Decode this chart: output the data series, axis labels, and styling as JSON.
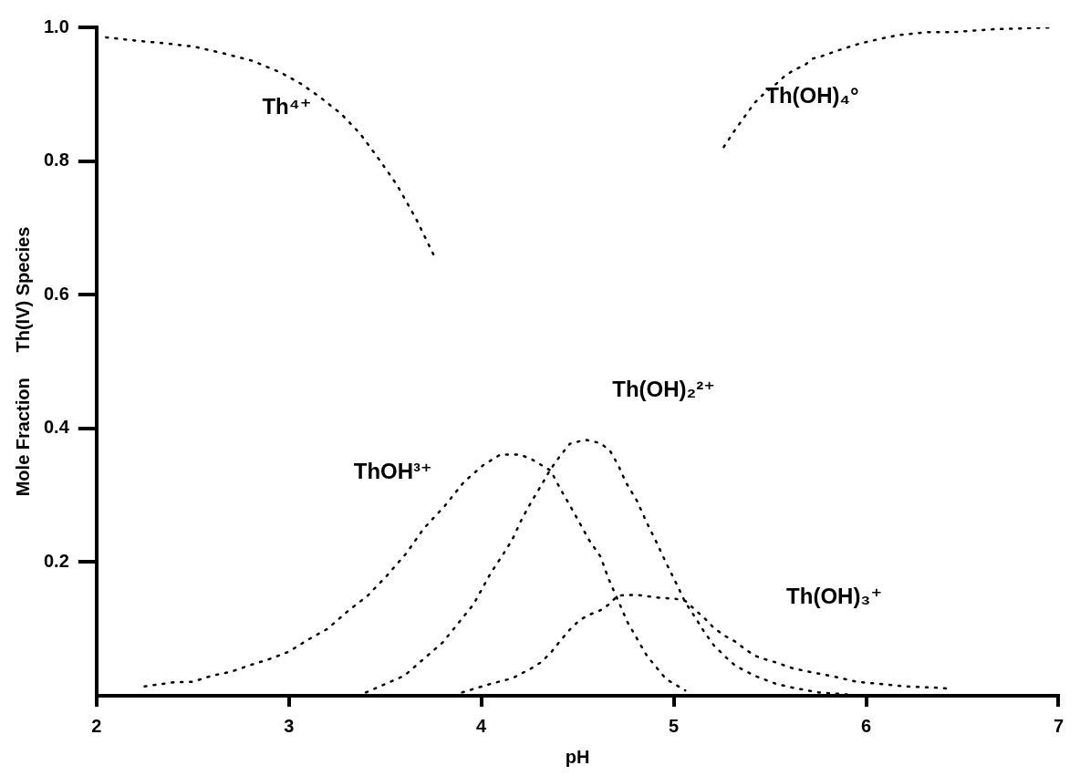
{
  "chart_data": {
    "type": "line",
    "xlabel": "pH",
    "ylabel": "Mole Fraction     Th(IV) Species",
    "xlim": [
      2,
      7
    ],
    "ylim": [
      0,
      1
    ],
    "xticks": [
      2,
      3,
      4,
      5,
      6,
      7
    ],
    "yticks": [
      0.2,
      0.4,
      0.6,
      0.8,
      {
        "value": 1,
        "label": "1.0"
      }
    ],
    "grid": false,
    "legend": false,
    "marker": "none",
    "line_style": "dotted",
    "series": [
      {
        "name": "Th⁴⁺",
        "color": "#000000",
        "x": [
          2.05,
          2.21,
          2.36,
          2.51,
          2.66,
          2.81,
          2.96,
          3.06,
          3.16,
          3.27,
          3.37,
          3.46,
          3.56,
          3.66,
          3.76
        ],
        "values": [
          0.985,
          0.98,
          0.976,
          0.971,
          0.961,
          0.95,
          0.932,
          0.916,
          0.896,
          0.871,
          0.841,
          0.806,
          0.765,
          0.714,
          0.655
        ]
      },
      {
        "name": "ThOH³⁺",
        "color": "#000000",
        "x": [
          2.25,
          2.4,
          2.5,
          2.6,
          2.7,
          2.79,
          2.9,
          3.0,
          3.1,
          3.2,
          3.3,
          3.41,
          3.51,
          3.61,
          3.7,
          3.81,
          3.91,
          4.01,
          4.1,
          4.2,
          4.26,
          4.36,
          4.41,
          4.46,
          4.51,
          4.56,
          4.62,
          4.66,
          4.76,
          4.86,
          4.96,
          5.06
        ],
        "values": [
          0.014,
          0.02,
          0.021,
          0.03,
          0.036,
          0.045,
          0.055,
          0.066,
          0.084,
          0.1,
          0.125,
          0.15,
          0.18,
          0.213,
          0.25,
          0.284,
          0.32,
          0.345,
          0.361,
          0.361,
          0.354,
          0.337,
          0.31,
          0.285,
          0.259,
          0.233,
          0.208,
          0.176,
          0.11,
          0.06,
          0.025,
          0.008
        ]
      },
      {
        "name": "Th(OH)₂²⁺",
        "color": "#000000",
        "x": [
          3.4,
          3.6,
          3.8,
          3.96,
          4.05,
          4.11,
          4.16,
          4.21,
          4.26,
          4.31,
          4.36,
          4.41,
          4.46,
          4.54,
          4.62,
          4.67,
          4.71,
          4.75,
          4.81,
          4.86,
          4.91,
          4.96,
          5.01,
          5.06,
          5.11,
          5.16,
          5.21,
          5.27,
          5.32,
          5.42,
          5.53,
          5.62,
          5.75,
          5.9
        ],
        "values": [
          0.005,
          0.03,
          0.08,
          0.137,
          0.184,
          0.21,
          0.233,
          0.264,
          0.29,
          0.314,
          0.339,
          0.359,
          0.377,
          0.383,
          0.378,
          0.366,
          0.346,
          0.32,
          0.291,
          0.259,
          0.23,
          0.199,
          0.17,
          0.14,
          0.118,
          0.095,
          0.075,
          0.058,
          0.045,
          0.03,
          0.018,
          0.012,
          0.005,
          0.002
        ]
      },
      {
        "name": "Th(OH)₃⁺",
        "color": "#000000",
        "x": [
          3.9,
          4.05,
          4.16,
          4.26,
          4.31,
          4.36,
          4.41,
          4.46,
          4.51,
          4.56,
          4.62,
          4.66,
          4.71,
          4.81,
          4.91,
          5.01,
          5.06,
          5.16,
          5.21,
          5.27,
          5.32,
          5.37,
          5.42,
          5.47,
          5.53,
          5.62,
          5.72,
          5.83,
          5.95,
          6.06,
          6.2,
          6.37,
          6.45
        ],
        "values": [
          0.005,
          0.018,
          0.026,
          0.041,
          0.05,
          0.064,
          0.082,
          0.099,
          0.113,
          0.121,
          0.128,
          0.136,
          0.15,
          0.151,
          0.147,
          0.145,
          0.142,
          0.116,
          0.101,
          0.089,
          0.081,
          0.07,
          0.06,
          0.055,
          0.05,
          0.041,
          0.035,
          0.029,
          0.021,
          0.018,
          0.014,
          0.012,
          0.01
        ]
      },
      {
        "name": "Th(OH)₄°",
        "color": "#000000",
        "x": [
          5.26,
          5.32,
          5.37,
          5.42,
          5.47,
          5.52,
          5.58,
          5.63,
          5.68,
          5.72,
          5.77,
          5.86,
          5.97,
          6.06,
          6.16,
          6.32,
          6.46,
          6.65,
          6.97
        ],
        "values": [
          0.821,
          0.847,
          0.867,
          0.887,
          0.901,
          0.912,
          0.928,
          0.937,
          0.943,
          0.953,
          0.957,
          0.966,
          0.976,
          0.982,
          0.988,
          0.993,
          0.993,
          0.997,
          1.0
        ]
      }
    ]
  }
}
